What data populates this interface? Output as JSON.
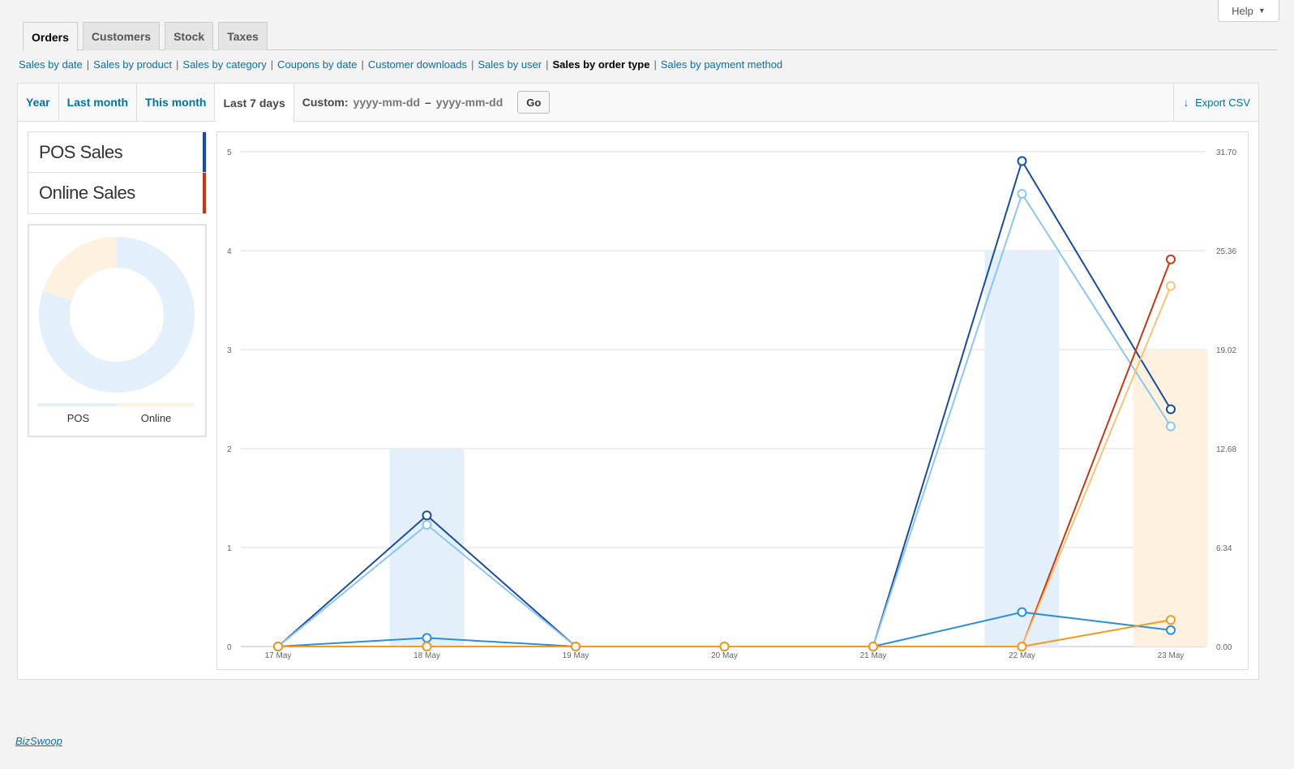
{
  "help": {
    "label": "Help"
  },
  "tabs": [
    {
      "label": "Orders"
    },
    {
      "label": "Customers"
    },
    {
      "label": "Stock"
    },
    {
      "label": "Taxes"
    }
  ],
  "reports_nav": [
    {
      "label": "Sales by date"
    },
    {
      "label": "Sales by product"
    },
    {
      "label": "Sales by category"
    },
    {
      "label": "Coupons by date"
    },
    {
      "label": "Customer downloads"
    },
    {
      "label": "Sales by user"
    },
    {
      "label": "Sales by order type"
    },
    {
      "label": "Sales by payment method"
    }
  ],
  "ranges": [
    {
      "label": "Year"
    },
    {
      "label": "Last month"
    },
    {
      "label": "This month"
    },
    {
      "label": "Last 7 days"
    }
  ],
  "custom": {
    "label": "Custom:",
    "from_placeholder": "yyyy-mm-dd",
    "dash": "–",
    "to_placeholder": "yyyy-mm-dd",
    "go_label": "Go"
  },
  "export": {
    "label": "Export CSV"
  },
  "legend": [
    {
      "label": "POS Sales",
      "color": "#1a4c9c"
    },
    {
      "label": "Online Sales",
      "color": "#c23a14"
    }
  ],
  "pie": {
    "labels": [
      "POS",
      "Online"
    ],
    "values": [
      4,
      1
    ],
    "colors": [
      "#e3f0fb",
      "#fef1e0"
    ]
  },
  "chart_data": {
    "type": "line",
    "categories": [
      "17 May",
      "18 May",
      "19 May",
      "20 May",
      "21 May",
      "22 May",
      "23 May"
    ],
    "y_left_ticks": [
      "0",
      "1",
      "2",
      "3",
      "4",
      "5"
    ],
    "y_right_ticks": [
      "0.00",
      "6.34",
      "12.68",
      "19.02",
      "25.36",
      "31.70"
    ],
    "ylim_left": [
      0,
      5
    ],
    "ylim_right": [
      0,
      31.7
    ],
    "grid": true,
    "bars": [
      {
        "category": "18 May",
        "value": 2,
        "color": "#e3f0fb"
      },
      {
        "category": "22 May",
        "value": 4,
        "color": "#e3f0fb"
      },
      {
        "category": "23 May",
        "value": 3,
        "color": "#fef1e0"
      }
    ],
    "series": [
      {
        "color": "#1a4c9c",
        "axis": "right",
        "values": [
          0,
          8.4,
          0,
          0,
          0,
          31.1,
          15.2
        ]
      },
      {
        "color": "#8cc6ef",
        "axis": "right",
        "values": [
          0,
          7.8,
          0,
          0,
          0,
          29.0,
          14.1
        ]
      },
      {
        "color": "#c23a14",
        "axis": "right",
        "values": [
          0,
          0,
          0,
          0,
          0,
          0,
          24.8
        ]
      },
      {
        "color": "#f9c173",
        "axis": "right",
        "values": [
          0,
          0,
          0,
          0,
          0,
          0,
          23.1
        ]
      },
      {
        "color": "#2a8edb",
        "axis": "right",
        "values": [
          0,
          0.55,
          0,
          0,
          0,
          2.2,
          1.05
        ]
      },
      {
        "color": "#f59a1e",
        "axis": "right",
        "values": [
          0,
          0,
          0,
          0,
          0,
          0,
          1.7
        ]
      }
    ]
  },
  "footer": {
    "label": "BizSwoop"
  }
}
